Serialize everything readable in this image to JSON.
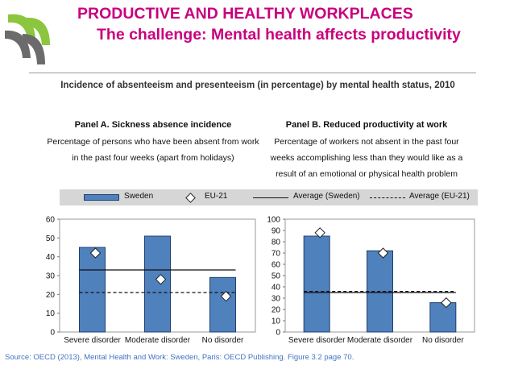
{
  "header": {
    "title": "PRODUCTIVE AND HEALTHY WORKPLACES",
    "subtitle": "The challenge: Mental health affects productivity"
  },
  "chart_title": "Incidence of absenteeism and presenteeism (in percentage) by mental health status, 2010",
  "legend": {
    "position": "top",
    "items": [
      {
        "label": "Sweden",
        "kind": "bar"
      },
      {
        "label": "EU-21",
        "kind": "diamond"
      },
      {
        "label": "Average (Sweden)",
        "kind": "solid-line"
      },
      {
        "label": "Average (EU-21)",
        "kind": "dashed-line"
      }
    ]
  },
  "source": "Source: OECD (2013), Mental Health and Work: Sweden, Paris: OECD Publishing. Figure 3.2 page 70.",
  "colors": {
    "title": "#c9007e",
    "bar": "#4f81bd",
    "bar_border": "#1f3f6e",
    "source": "#4472c4",
    "legend_bg": "#d6d6d6"
  },
  "chart_data": [
    {
      "type": "bar",
      "title": "Panel A. Sickness absence incidence",
      "subtitle_lines": [
        "Percentage of persons who have been absent from work",
        "in the past four weeks (apart from holidays)"
      ],
      "categories": [
        "Severe disorder",
        "Moderate disorder",
        "No disorder"
      ],
      "series": [
        {
          "name": "Sweden",
          "values": [
            45,
            51,
            29
          ]
        },
        {
          "name": "EU-21",
          "values": [
            42,
            28,
            19
          ]
        }
      ],
      "average_sweden": 33,
      "average_eu21": 21,
      "yticks": [
        0,
        10,
        20,
        30,
        40,
        50,
        60
      ],
      "ylim": [
        0,
        60
      ],
      "grid": false
    },
    {
      "type": "bar",
      "title": "Panel B. Reduced productivity at work",
      "subtitle_lines": [
        "Percentage of workers not absent in the past four",
        "weeks accomplishing less than they would like as a",
        "result of an emotional or physical health problem"
      ],
      "categories": [
        "Severe disorder",
        "Moderate disorder",
        "No disorder"
      ],
      "series": [
        {
          "name": "Sweden",
          "values": [
            85,
            72,
            26
          ]
        },
        {
          "name": "EU-21",
          "values": [
            88,
            70,
            26
          ]
        }
      ],
      "average_sweden": 35,
      "average_eu21": 36,
      "yticks": [
        0,
        10,
        20,
        30,
        40,
        50,
        60,
        70,
        80,
        90,
        100
      ],
      "ylim": [
        0,
        100
      ],
      "grid": false
    }
  ]
}
